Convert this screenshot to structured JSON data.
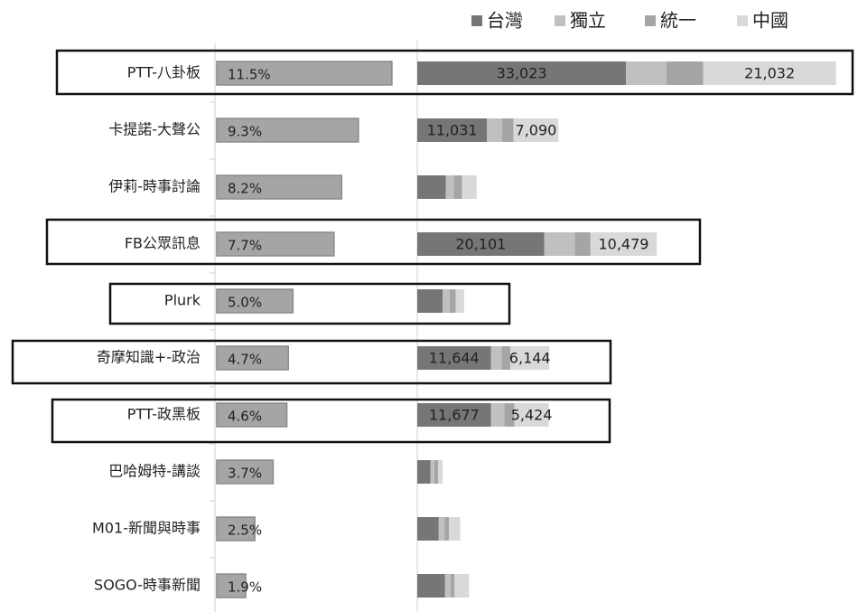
{
  "chart_data": {
    "type": "bar-stacked",
    "categories": [
      "PTT-八卦板",
      "卡提諾-大聲公",
      "伊莉-時事討論",
      "FB公眾訊息",
      "Plurk",
      "奇摩知識+-政治",
      "PTT-政黑板",
      "巴哈姆特-講談",
      "M01-新聞與時事",
      "SOGO-時事新聞"
    ],
    "share": {
      "values": [
        11.5,
        9.3,
        8.2,
        7.7,
        5.0,
        4.7,
        4.6,
        3.7,
        2.5,
        1.9
      ],
      "value_labels": [
        "11.5%",
        "9.3%",
        "8.2%",
        "7.7%",
        "5.0%",
        "4.7%",
        "4.6%",
        "3.7%",
        "2.5%",
        "1.9%"
      ],
      "color": "#a5a5a5",
      "xlim": [
        0,
        11.8
      ]
    },
    "xlim": [
      0,
      67000
    ],
    "series": [
      {
        "name": "台灣",
        "color": "#767676",
        "values": [
          33023,
          11031,
          4500,
          20101,
          4000,
          11644,
          11677,
          2100,
          3400,
          4400
        ],
        "value_labels": [
          "33,023",
          "11,031",
          null,
          "20,101",
          null,
          "11,644",
          "11,677",
          null,
          null,
          null
        ]
      },
      {
        "name": "獨立",
        "color": "#c0c0c0",
        "values": [
          6400,
          2400,
          1300,
          4800,
          1100,
          1700,
          2100,
          600,
          900,
          900
        ]
      },
      {
        "name": "統一",
        "color": "#a5a5a5",
        "values": [
          5800,
          1800,
          1300,
          2500,
          1000,
          1400,
          1600,
          600,
          700,
          600
        ]
      },
      {
        "name": "中國",
        "color": "#d9d9d9",
        "values": [
          21032,
          7090,
          2300,
          10479,
          1300,
          6144,
          5424,
          700,
          1800,
          2300
        ],
        "value_labels": [
          "21,032",
          "7,090",
          null,
          "10,479",
          null,
          "6,144",
          "5,424",
          null,
          null,
          null
        ]
      }
    ]
  }
}
